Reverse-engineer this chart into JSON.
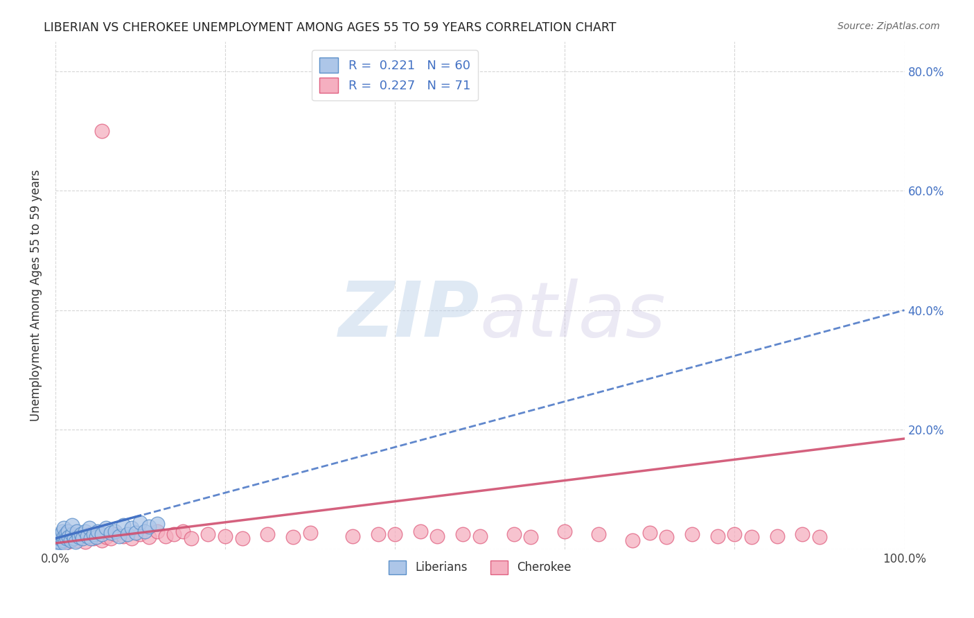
{
  "title": "LIBERIAN VS CHEROKEE UNEMPLOYMENT AMONG AGES 55 TO 59 YEARS CORRELATION CHART",
  "source": "Source: ZipAtlas.com",
  "ylabel": "Unemployment Among Ages 55 to 59 years",
  "xlim": [
    0.0,
    1.0
  ],
  "ylim": [
    0.0,
    0.85
  ],
  "liberian_color": "#adc6e8",
  "cherokee_color": "#f5afc0",
  "liberian_edge_color": "#5b8fc9",
  "cherokee_edge_color": "#e06080",
  "liberian_R": 0.221,
  "liberian_N": 60,
  "cherokee_R": 0.227,
  "cherokee_N": 71,
  "trendline_liberian_color": "#4472c4",
  "trendline_cherokee_color": "#d05070",
  "background_color": "#ffffff",
  "grid_color": "#cccccc",
  "lib_trend_x0": 0.0,
  "lib_trend_y0": 0.018,
  "lib_trend_x1": 1.0,
  "lib_trend_y1": 0.4,
  "cher_trend_x0": 0.0,
  "cher_trend_y0": 0.01,
  "cher_trend_x1": 1.0,
  "cher_trend_y1": 0.185,
  "lib_x": [
    0.0,
    0.0,
    0.0,
    0.0,
    0.0,
    0.0,
    0.0,
    0.0,
    0.0,
    0.0,
    0.0,
    0.0,
    0.0,
    0.0,
    0.0,
    0.0,
    0.002,
    0.003,
    0.004,
    0.005,
    0.006,
    0.007,
    0.008,
    0.009,
    0.01,
    0.01,
    0.011,
    0.012,
    0.013,
    0.015,
    0.016,
    0.018,
    0.02,
    0.02,
    0.022,
    0.024,
    0.025,
    0.028,
    0.03,
    0.032,
    0.035,
    0.038,
    0.04,
    0.042,
    0.045,
    0.048,
    0.05,
    0.055,
    0.06,
    0.065,
    0.07,
    0.075,
    0.08,
    0.085,
    0.09,
    0.095,
    0.1,
    0.105,
    0.11,
    0.12
  ],
  "lib_y": [
    0.0,
    0.0,
    0.0,
    0.0,
    0.0,
    0.0,
    0.002,
    0.003,
    0.004,
    0.005,
    0.006,
    0.007,
    0.008,
    0.01,
    0.012,
    0.015,
    0.005,
    0.008,
    0.012,
    0.018,
    0.022,
    0.025,
    0.03,
    0.015,
    0.02,
    0.035,
    0.01,
    0.025,
    0.018,
    0.03,
    0.02,
    0.015,
    0.025,
    0.04,
    0.018,
    0.012,
    0.03,
    0.02,
    0.025,
    0.018,
    0.03,
    0.022,
    0.035,
    0.018,
    0.025,
    0.02,
    0.03,
    0.025,
    0.035,
    0.028,
    0.03,
    0.022,
    0.04,
    0.025,
    0.035,
    0.028,
    0.045,
    0.03,
    0.038,
    0.042
  ],
  "cher_x": [
    0.0,
    0.0,
    0.0,
    0.0,
    0.0,
    0.0,
    0.0,
    0.0,
    0.0,
    0.0,
    0.0,
    0.0,
    0.001,
    0.002,
    0.003,
    0.004,
    0.005,
    0.006,
    0.008,
    0.01,
    0.012,
    0.015,
    0.018,
    0.02,
    0.025,
    0.03,
    0.035,
    0.04,
    0.045,
    0.05,
    0.055,
    0.06,
    0.065,
    0.07,
    0.08,
    0.09,
    0.1,
    0.11,
    0.12,
    0.13,
    0.14,
    0.15,
    0.16,
    0.18,
    0.2,
    0.22,
    0.25,
    0.28,
    0.3,
    0.35,
    0.38,
    0.4,
    0.43,
    0.45,
    0.48,
    0.5,
    0.54,
    0.56,
    0.6,
    0.64,
    0.68,
    0.7,
    0.72,
    0.75,
    0.78,
    0.8,
    0.82,
    0.85,
    0.88,
    0.9,
    0.055
  ],
  "cher_y": [
    0.0,
    0.0,
    0.0,
    0.0,
    0.0,
    0.0,
    0.0,
    0.002,
    0.004,
    0.006,
    0.008,
    0.01,
    0.005,
    0.01,
    0.015,
    0.005,
    0.008,
    0.012,
    0.018,
    0.015,
    0.02,
    0.012,
    0.018,
    0.025,
    0.015,
    0.02,
    0.012,
    0.025,
    0.018,
    0.022,
    0.015,
    0.02,
    0.018,
    0.025,
    0.022,
    0.018,
    0.025,
    0.02,
    0.03,
    0.022,
    0.025,
    0.03,
    0.018,
    0.025,
    0.022,
    0.018,
    0.025,
    0.02,
    0.028,
    0.022,
    0.025,
    0.025,
    0.03,
    0.022,
    0.025,
    0.022,
    0.025,
    0.02,
    0.03,
    0.025,
    0.015,
    0.028,
    0.02,
    0.025,
    0.022,
    0.025,
    0.02,
    0.022,
    0.025,
    0.02,
    0.7
  ]
}
